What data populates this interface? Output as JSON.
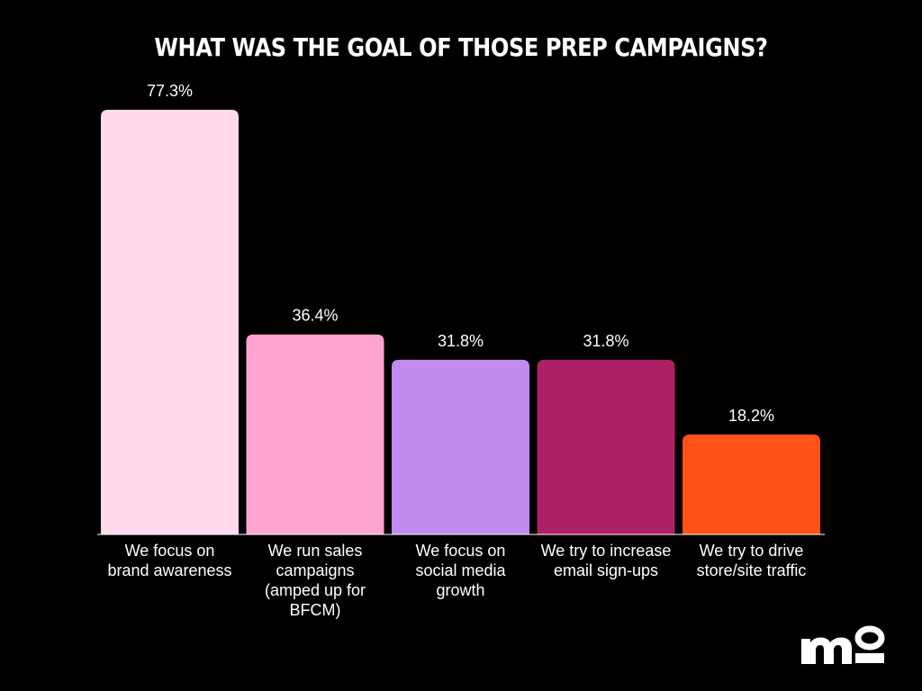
{
  "chart_data": {
    "type": "bar",
    "title": "WHAT WAS THE GOAL OF THOSE PREP CAMPAIGNS?",
    "categories": [
      "We focus on brand awareness",
      "We run sales campaigns (amped up for BFCM)",
      "We focus on social media growth",
      "We try to increase email sign-ups",
      "We try to drive store/site traffic"
    ],
    "values": [
      77.3,
      36.4,
      31.8,
      31.8,
      18.2
    ],
    "data_labels": [
      "77.3%",
      "36.4%",
      "31.8%",
      "31.8%",
      "18.2%"
    ],
    "colors": [
      "#FFD9EC",
      "#FFA3CF",
      "#C38BEF",
      "#AD2066",
      "#FF5218"
    ],
    "ylim": [
      0,
      77.3
    ],
    "grid": false,
    "legend": "none"
  },
  "brand": {
    "logo_text": "mo",
    "logo_color": "#ffffff"
  }
}
